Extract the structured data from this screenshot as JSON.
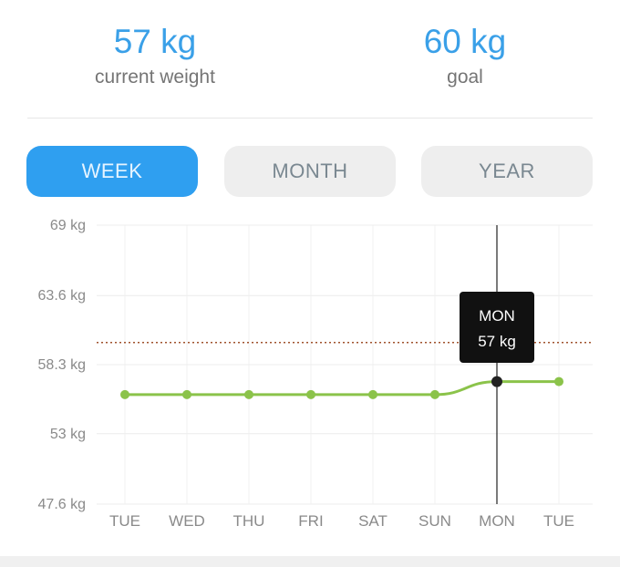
{
  "stats": {
    "current": {
      "value": "57 kg",
      "label": "current weight"
    },
    "goal": {
      "value": "60 kg",
      "label": "goal"
    }
  },
  "tabs": [
    {
      "label": "WEEK",
      "active": true
    },
    {
      "label": "MONTH",
      "active": false
    },
    {
      "label": "YEAR",
      "active": false
    }
  ],
  "colors": {
    "accent": "#2f9ff0",
    "line": "#8bc34a",
    "goal_line": "#a0522d",
    "tooltip_bg": "#111111",
    "selected_point": "#222222"
  },
  "chart_data": {
    "type": "line",
    "categories": [
      "TUE",
      "WED",
      "THU",
      "FRI",
      "SAT",
      "SUN",
      "MON",
      "TUE"
    ],
    "series": [
      {
        "values": [
          56,
          56,
          56,
          56,
          56,
          56,
          57,
          57
        ]
      }
    ],
    "y_ticks": [
      "69 kg",
      "63.6 kg",
      "58.3 kg",
      "53 kg",
      "47.6 kg"
    ],
    "y_tick_values": [
      69,
      63.6,
      58.3,
      53,
      47.6
    ],
    "ylim": [
      47.6,
      69
    ],
    "goal": 60,
    "grid": true,
    "tooltip": {
      "category_index": 6,
      "title": "MON",
      "value": "57 kg"
    }
  }
}
